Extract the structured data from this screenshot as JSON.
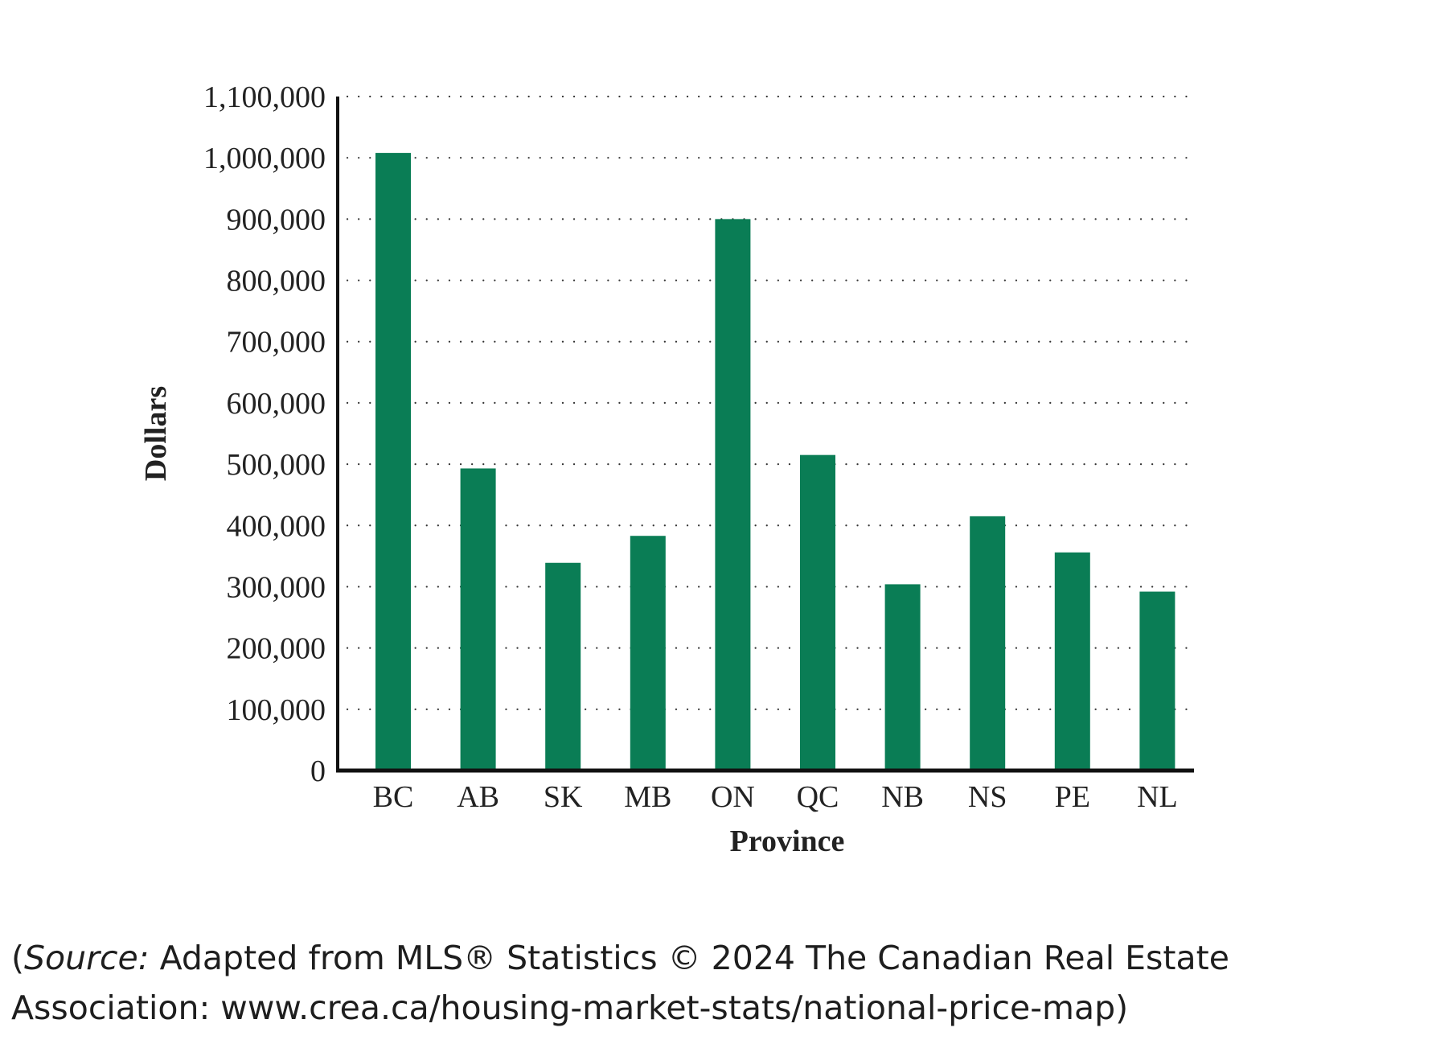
{
  "chart_data": {
    "type": "bar",
    "title": "",
    "xlabel": "Province",
    "ylabel": "Dollars",
    "categories": [
      "BC",
      "AB",
      "SK",
      "MB",
      "ON",
      "QC",
      "NB",
      "NS",
      "PE",
      "NL"
    ],
    "values": [
      1008000,
      493000,
      339000,
      383000,
      900000,
      515000,
      304000,
      415000,
      356000,
      292000
    ],
    "ylim": [
      0,
      1100000
    ],
    "yticks": [
      0,
      100000,
      200000,
      300000,
      400000,
      500000,
      600000,
      700000,
      800000,
      900000,
      1000000,
      1100000
    ],
    "ytick_labels": [
      "0",
      "100,000",
      "200,000",
      "300,000",
      "400,000",
      "500,000",
      "600,000",
      "700,000",
      "800,000",
      "900,000",
      "1,000,000",
      "1,100,000"
    ],
    "grid": "horizontal dotted",
    "legend": "none",
    "bar_color": "#0a7d55"
  },
  "caption": {
    "open_paren": "(",
    "source_label": "Source:",
    "text": " Adapted from MLS® Statistics © 2024 The Canadian Real Estate Association: www.crea.ca/housing-market-stats/national-price-map)"
  }
}
